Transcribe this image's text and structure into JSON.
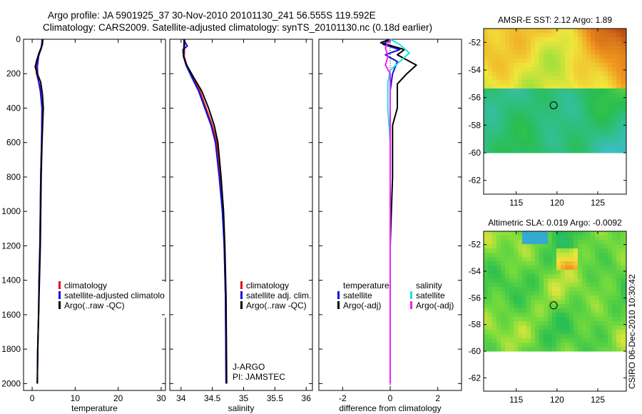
{
  "figure": {
    "title_line1": "Argo profile: JA 5901925_37 30-Nov-2010 20101130_241 56.555S 119.592E",
    "title_line2": "Climatology: CARS2009. Satellite-adjusted climatology: synTS_20101130.nc (0.18d earlier)",
    "side_stamp": "CSIRO 06-Dec-2010 10:30:42"
  },
  "colors": {
    "climatology": "#e01010",
    "satellite": "#1010e0",
    "argo": "#000000",
    "satellite_diff_sal": "#20e0e0",
    "argo_diff_sal": "#ee22ee"
  },
  "chart_data": [
    {
      "id": "temperature",
      "type": "line",
      "xlabel": "temperature",
      "xlim": [
        -2,
        31
      ],
      "ylim": [
        2040,
        0
      ],
      "xticks": [
        0,
        10,
        20,
        30
      ],
      "yticks": [
        0,
        200,
        400,
        600,
        800,
        1000,
        1200,
        1400,
        1600,
        1800,
        2000
      ],
      "legend": [
        "climatology",
        "satellite-adjusted climatolog",
        "Argo(..raw -QC)"
      ],
      "series": [
        {
          "name": "climatology",
          "color": "#e01010",
          "points": [
            [
              2.3,
              0
            ],
            [
              2.2,
              50
            ],
            [
              1.4,
              100
            ],
            [
              0.9,
              150
            ],
            [
              1.0,
              200
            ],
            [
              1.9,
              280
            ],
            [
              2.3,
              400
            ],
            [
              2.2,
              600
            ],
            [
              2.0,
              800
            ],
            [
              1.9,
              1000
            ],
            [
              1.8,
              1200
            ],
            [
              1.6,
              1400
            ],
            [
              1.5,
              1600
            ],
            [
              1.3,
              1800
            ],
            [
              1.2,
              2000
            ]
          ]
        },
        {
          "name": "satellite-adjusted climatolog",
          "color": "#1010e0",
          "points": [
            [
              2.4,
              0
            ],
            [
              2.1,
              50
            ],
            [
              1.5,
              100
            ],
            [
              1.2,
              160
            ],
            [
              1.3,
              220
            ],
            [
              1.9,
              300
            ],
            [
              2.3,
              400
            ],
            [
              2.2,
              600
            ],
            [
              2.0,
              800
            ],
            [
              1.9,
              1000
            ],
            [
              1.8,
              1200
            ],
            [
              1.6,
              1400
            ],
            [
              1.5,
              1600
            ],
            [
              1.3,
              1800
            ],
            [
              1.2,
              2000
            ]
          ]
        },
        {
          "name": "Argo(..raw -QC)",
          "color": "#000000",
          "points": [
            [
              2.5,
              0
            ],
            [
              2.4,
              30
            ],
            [
              1.6,
              80
            ],
            [
              1.1,
              120
            ],
            [
              0.7,
              160
            ],
            [
              1.2,
              200
            ],
            [
              2.0,
              250
            ],
            [
              2.4,
              320
            ],
            [
              2.6,
              400
            ],
            [
              2.3,
              600
            ],
            [
              2.1,
              800
            ],
            [
              2.0,
              1000
            ],
            [
              1.9,
              1200
            ],
            [
              1.7,
              1400
            ],
            [
              1.5,
              1600
            ],
            [
              1.3,
              1800
            ],
            [
              1.2,
              2000
            ]
          ]
        }
      ]
    },
    {
      "id": "salinity",
      "type": "line",
      "xlabel": "salinity",
      "xlim": [
        33.82,
        36.1
      ],
      "ylim": [
        2040,
        0
      ],
      "xticks": [
        34,
        34.5,
        35,
        35.5,
        36
      ],
      "yticks": [
        0,
        200,
        400,
        600,
        800,
        1000,
        1200,
        1400,
        1600,
        1800,
        2000
      ],
      "legend": [
        "climatology",
        "satellite adj. clim.",
        "Argo(..raw -QC)"
      ],
      "annotation": [
        "J-ARGO",
        "PI: JAMSTEC"
      ],
      "series": [
        {
          "name": "climatology",
          "color": "#e01010",
          "points": [
            [
              34.06,
              0
            ],
            [
              34.05,
              100
            ],
            [
              34.09,
              150
            ],
            [
              34.18,
              220
            ],
            [
              34.3,
              300
            ],
            [
              34.4,
              400
            ],
            [
              34.5,
              500
            ],
            [
              34.57,
              600
            ],
            [
              34.62,
              800
            ],
            [
              34.67,
              1000
            ],
            [
              34.69,
              1200
            ],
            [
              34.71,
              1500
            ],
            [
              34.72,
              2000
            ]
          ]
        },
        {
          "name": "satellite adj. clim.",
          "color": "#1010e0",
          "points": [
            [
              34.04,
              0
            ],
            [
              34.1,
              40
            ],
            [
              34.03,
              60
            ],
            [
              34.04,
              100
            ],
            [
              34.08,
              150
            ],
            [
              34.17,
              220
            ],
            [
              34.28,
              300
            ],
            [
              34.38,
              400
            ],
            [
              34.48,
              500
            ],
            [
              34.55,
              600
            ],
            [
              34.61,
              800
            ],
            [
              34.66,
              1000
            ],
            [
              34.69,
              1200
            ],
            [
              34.71,
              1500
            ],
            [
              34.72,
              2000
            ]
          ]
        },
        {
          "name": "Argo(..raw -QC)",
          "color": "#000000",
          "points": [
            [
              34.05,
              0
            ],
            [
              34.04,
              100
            ],
            [
              34.09,
              150
            ],
            [
              34.2,
              220
            ],
            [
              34.33,
              300
            ],
            [
              34.44,
              400
            ],
            [
              34.53,
              500
            ],
            [
              34.59,
              600
            ],
            [
              34.64,
              800
            ],
            [
              34.68,
              1000
            ],
            [
              34.7,
              1200
            ],
            [
              34.72,
              1500
            ],
            [
              34.73,
              2000
            ]
          ]
        }
      ]
    },
    {
      "id": "difference",
      "type": "line",
      "xlabel": "difference from climatology",
      "xlim": [
        -3,
        3
      ],
      "ylim": [
        2040,
        0
      ],
      "xticks": [
        -2,
        0,
        2
      ],
      "yticks": [
        0,
        200,
        400,
        600,
        800,
        1000,
        1200,
        1400,
        1600,
        1800,
        2000
      ],
      "legend_headers": [
        "temperature",
        "salinity"
      ],
      "legend": [
        "satellite",
        "Argo(-adj)",
        "satellite",
        "Argo(-adj)"
      ],
      "series": [
        {
          "name": "temperature satellite",
          "color": "#1010e0",
          "points": [
            [
              0.0,
              0
            ],
            [
              -0.3,
              30
            ],
            [
              0.4,
              60
            ],
            [
              -0.2,
              90
            ],
            [
              0.3,
              130
            ],
            [
              0.1,
              200
            ],
            [
              0.0,
              300
            ],
            [
              0.0,
              400
            ],
            [
              0.0,
              600
            ],
            [
              0.0,
              800
            ],
            [
              0.0,
              1200
            ],
            [
              0.0,
              2000
            ]
          ]
        },
        {
          "name": "temperature Argo(-adj)",
          "color": "#000000",
          "points": [
            [
              0.0,
              0
            ],
            [
              -0.4,
              20
            ],
            [
              0.6,
              60
            ],
            [
              0.3,
              90
            ],
            [
              1.1,
              150
            ],
            [
              0.7,
              200
            ],
            [
              0.3,
              260
            ],
            [
              0.3,
              400
            ],
            [
              0.1,
              500
            ],
            [
              0.1,
              600
            ],
            [
              0.1,
              800
            ],
            [
              0.0,
              1200
            ],
            [
              0.0,
              2000
            ]
          ]
        },
        {
          "name": "salinity satellite",
          "color": "#20e0e0",
          "points": [
            [
              0.0,
              0
            ],
            [
              0.4,
              30
            ],
            [
              0.8,
              80
            ],
            [
              0.4,
              130
            ],
            [
              0.0,
              180
            ],
            [
              -0.1,
              250
            ],
            [
              -0.1,
              400
            ],
            [
              0.0,
              600
            ],
            [
              0.0,
              800
            ],
            [
              0.0,
              1200
            ],
            [
              0.0,
              2000
            ]
          ]
        },
        {
          "name": "salinity Argo(-adj)",
          "color": "#ee22ee",
          "points": [
            [
              0.0,
              0
            ],
            [
              -0.2,
              50
            ],
            [
              -0.1,
              100
            ],
            [
              -0.2,
              150
            ],
            [
              0.0,
              200
            ],
            [
              0.0,
              300
            ],
            [
              0.0,
              600
            ],
            [
              0.0,
              1200
            ],
            [
              0.0,
              2000
            ]
          ]
        }
      ]
    },
    {
      "id": "sst_map",
      "type": "heatmap",
      "title": "AMSR-E SST: 2.12 Argo: 1.89",
      "xlim": [
        111,
        128.5
      ],
      "ylim": [
        -63,
        -51
      ],
      "xticks": [
        115,
        120,
        125
      ],
      "yticks": [
        -52,
        -54,
        -56,
        -58,
        -60,
        -62
      ],
      "data_lat_min": -60,
      "marker": [
        119.59,
        -56.56
      ]
    },
    {
      "id": "sla_map",
      "type": "heatmap",
      "title": "Altimetric SLA: 0.019 Argo: -0.0092",
      "xlim": [
        111,
        128.5
      ],
      "ylim": [
        -63,
        -51
      ],
      "xticks": [
        115,
        120,
        125
      ],
      "yticks": [
        -52,
        -54,
        -56,
        -58,
        -60,
        -62
      ],
      "data_lat_min": -60,
      "marker": [
        119.59,
        -56.56
      ]
    }
  ]
}
